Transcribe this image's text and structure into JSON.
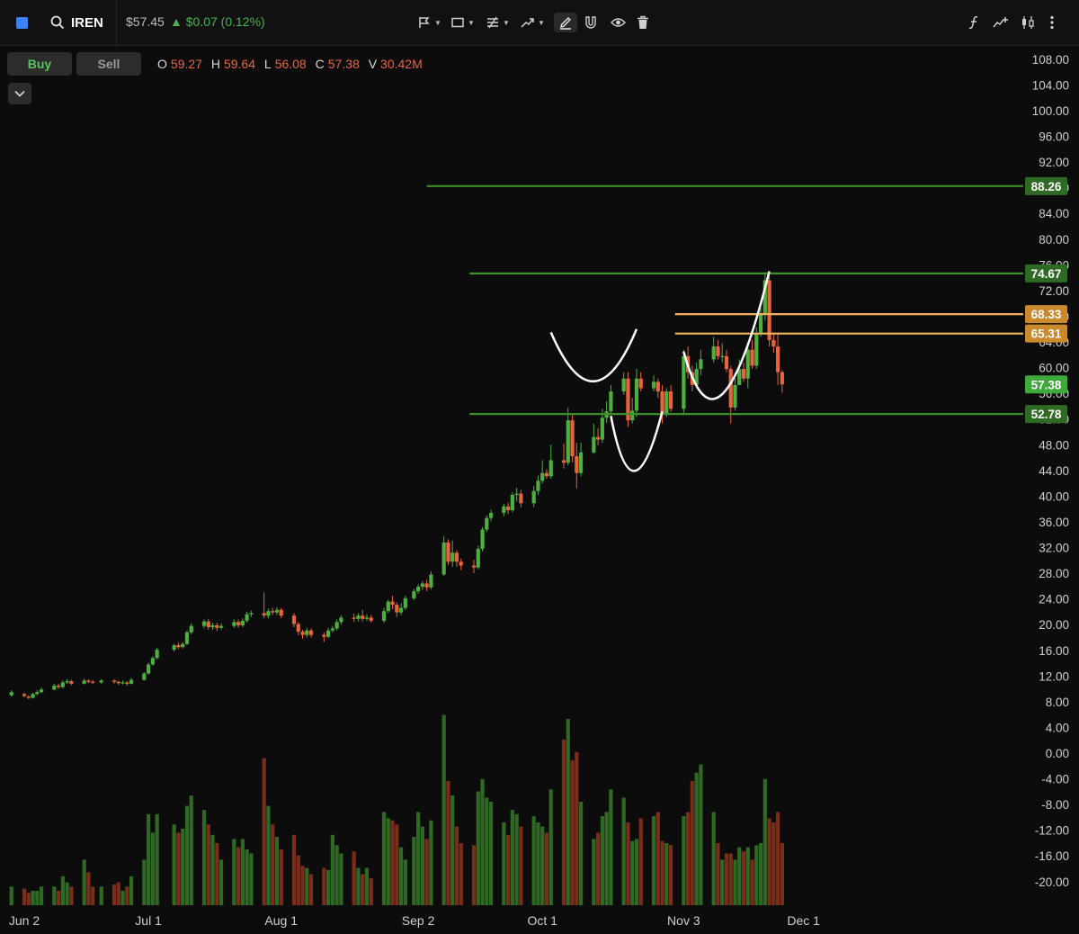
{
  "header": {
    "ticker": "IREN",
    "price": "$57.45",
    "change": "▲ $0.07 (0.12%)",
    "icons": [
      "app-square-icon",
      "search-icon",
      "flag-icon",
      "rectangle-icon",
      "fib-icon",
      "trend-icon",
      "pencil-icon",
      "magnet-icon",
      "eye-icon",
      "trash-icon",
      "function-icon",
      "indicator-icon",
      "candle-type-icon",
      "more-icon"
    ]
  },
  "toolbar": {
    "buy_label": "Buy",
    "sell_label": "Sell"
  },
  "ohlcv": {
    "o_label": "O",
    "o": "59.27",
    "h_label": "H",
    "h": "59.64",
    "l_label": "L",
    "l": "56.08",
    "c_label": "C",
    "c": "57.38",
    "v_label": "V",
    "v": "30.42M"
  },
  "colors": {
    "up": "#4caf3e",
    "down": "#e8643c",
    "level_green": "#3d8f2a",
    "level_orange": "#f2b25c",
    "background": "#0c0c0c",
    "accent": "#3b82f6"
  },
  "chart_data": {
    "type": "candlestick",
    "y_ticks": [
      "108.00",
      "104.00",
      "100.00",
      "96.00",
      "92.00",
      "88.00",
      "84.00",
      "80.00",
      "76.00",
      "72.00",
      "68.00",
      "64.00",
      "60.00",
      "56.00",
      "52.00",
      "48.00",
      "44.00",
      "40.00",
      "36.00",
      "32.00",
      "28.00",
      "24.00",
      "20.00",
      "16.00",
      "12.00",
      "8.00",
      "4.00",
      "0.00",
      "-4.00",
      "-8.00",
      "-12.00",
      "-16.00",
      "-20.00"
    ],
    "y_tick_values": [
      108,
      104,
      100,
      96,
      92,
      88,
      84,
      80,
      76,
      72,
      68,
      64,
      60,
      56,
      52,
      48,
      44,
      40,
      36,
      32,
      28,
      24,
      20,
      16,
      12,
      8,
      4,
      0,
      -4,
      -8,
      -12,
      -16,
      -20
    ],
    "ylim": [
      -22,
      110
    ],
    "x_ticks": [
      "Jun 2",
      "Jul 1",
      "Aug 1",
      "Sep 2",
      "Oct 1",
      "Nov 3",
      "Dec 1"
    ],
    "x_tick_dates": [
      "2025-06-02",
      "2025-07-01",
      "2025-08-01",
      "2025-09-02",
      "2025-10-01",
      "2025-11-03",
      "2025-12-01"
    ],
    "levels": [
      {
        "value": 88.26,
        "label": "88.26",
        "color": "green",
        "start": "2025-09-04"
      },
      {
        "value": 74.67,
        "label": "74.67",
        "color": "green",
        "start": "2025-09-14"
      },
      {
        "value": 68.33,
        "label": "68.33",
        "color": "orange",
        "start": "2025-11-01"
      },
      {
        "value": 65.31,
        "label": "65.31",
        "color": "orange",
        "start": "2025-11-01"
      },
      {
        "value": 57.38,
        "label": "57.38",
        "color": "last",
        "start": null
      },
      {
        "value": 52.78,
        "label": "52.78",
        "color": "green",
        "start": "2025-09-14"
      }
    ],
    "curves": [
      {
        "from": [
          "2025-10-03",
          65.5
        ],
        "control": [
          "2025-10-13",
          50
        ],
        "to": [
          "2025-10-23",
          66
        ]
      },
      {
        "from": [
          "2025-10-17",
          52.5
        ],
        "control": [
          "2025-10-22",
          35
        ],
        "to": [
          "2025-10-29",
          53.2
        ]
      },
      {
        "from": [
          "2025-11-03",
          62.5
        ],
        "control": [
          "2025-11-11",
          43
        ],
        "to": [
          "2025-11-23",
          75
        ]
      }
    ],
    "candles": [
      [
        "2025-05-30",
        9.0,
        9.5,
        9.8,
        8.8,
        9
      ],
      [
        "2025-06-02",
        9.2,
        8.9,
        9.4,
        8.7,
        8
      ],
      [
        "2025-06-03",
        8.8,
        8.6,
        9.0,
        8.4,
        6
      ],
      [
        "2025-06-04",
        8.6,
        9.2,
        9.4,
        8.5,
        7
      ],
      [
        "2025-06-05",
        9.2,
        9.5,
        9.8,
        9.0,
        7
      ],
      [
        "2025-06-06",
        9.5,
        9.9,
        10.2,
        9.3,
        9
      ],
      [
        "2025-06-09",
        9.9,
        10.5,
        10.8,
        9.8,
        9
      ],
      [
        "2025-06-10",
        10.5,
        10.3,
        10.8,
        10.0,
        7
      ],
      [
        "2025-06-11",
        10.3,
        11.0,
        11.3,
        10.1,
        14
      ],
      [
        "2025-06-12",
        11.0,
        11.2,
        11.5,
        10.8,
        11
      ],
      [
        "2025-06-13",
        11.2,
        10.8,
        11.4,
        10.6,
        9
      ],
      [
        "2025-06-16",
        10.8,
        11.3,
        11.6,
        10.7,
        22
      ],
      [
        "2025-06-17",
        11.3,
        11.1,
        11.5,
        10.9,
        16
      ],
      [
        "2025-06-18",
        11.1,
        11.0,
        11.4,
        10.8,
        9
      ],
      [
        "2025-06-20",
        11.0,
        11.3,
        11.5,
        10.8,
        9
      ],
      [
        "2025-06-23",
        11.3,
        11.1,
        11.5,
        10.8,
        10
      ],
      [
        "2025-06-24",
        11.1,
        10.9,
        11.3,
        10.6,
        11
      ],
      [
        "2025-06-25",
        10.9,
        11.0,
        11.3,
        10.7,
        7
      ],
      [
        "2025-06-26",
        11.0,
        10.8,
        11.2,
        10.5,
        9
      ],
      [
        "2025-06-27",
        10.8,
        11.4,
        11.7,
        10.7,
        14
      ],
      [
        "2025-06-30",
        11.4,
        12.4,
        12.6,
        11.3,
        22
      ],
      [
        "2025-07-01",
        12.4,
        13.8,
        14.1,
        12.2,
        44
      ],
      [
        "2025-07-02",
        13.8,
        14.8,
        15.1,
        13.6,
        35
      ],
      [
        "2025-07-03",
        14.8,
        16.1,
        16.4,
        14.6,
        44
      ],
      [
        "2025-07-07",
        16.1,
        16.8,
        17.0,
        15.8,
        39
      ],
      [
        "2025-07-08",
        16.8,
        16.5,
        17.2,
        16.2,
        35
      ],
      [
        "2025-07-09",
        16.5,
        17.0,
        17.3,
        16.3,
        37
      ],
      [
        "2025-07-10",
        17.0,
        18.8,
        19.1,
        16.8,
        48
      ],
      [
        "2025-07-11",
        18.8,
        19.8,
        20.2,
        18.5,
        53
      ],
      [
        "2025-07-14",
        19.8,
        20.5,
        20.8,
        19.4,
        46
      ],
      [
        "2025-07-15",
        20.5,
        19.6,
        20.9,
        19.2,
        39
      ],
      [
        "2025-07-16",
        19.6,
        19.9,
        20.3,
        19.2,
        34
      ],
      [
        "2025-07-17",
        19.9,
        19.5,
        20.3,
        19.0,
        30
      ],
      [
        "2025-07-18",
        19.5,
        19.8,
        20.2,
        19.2,
        22
      ],
      [
        "2025-07-21",
        19.8,
        20.4,
        20.8,
        19.5,
        32
      ],
      [
        "2025-07-22",
        20.4,
        19.9,
        20.8,
        19.5,
        28
      ],
      [
        "2025-07-23",
        19.9,
        20.6,
        21.0,
        19.6,
        32
      ],
      [
        "2025-07-24",
        20.6,
        21.6,
        22.0,
        20.3,
        27
      ],
      [
        "2025-07-25",
        21.6,
        21.8,
        22.2,
        21.2,
        25
      ],
      [
        "2025-07-28",
        21.8,
        21.4,
        25.0,
        21.0,
        71
      ],
      [
        "2025-07-29",
        21.4,
        22.1,
        22.5,
        21.0,
        48
      ],
      [
        "2025-07-30",
        22.1,
        21.9,
        22.6,
        21.5,
        39
      ],
      [
        "2025-07-31",
        21.9,
        22.3,
        22.7,
        21.5,
        33
      ],
      [
        "2025-08-01",
        22.3,
        21.4,
        22.6,
        21.0,
        27
      ],
      [
        "2025-08-04",
        21.4,
        20.1,
        21.8,
        19.6,
        34
      ],
      [
        "2025-08-05",
        20.1,
        18.9,
        20.4,
        18.3,
        24
      ],
      [
        "2025-08-06",
        18.9,
        18.4,
        19.2,
        17.8,
        19
      ],
      [
        "2025-08-07",
        18.4,
        19.1,
        19.5,
        18.0,
        18
      ],
      [
        "2025-08-08",
        19.1,
        18.4,
        19.4,
        18.0,
        15
      ],
      [
        "2025-08-11",
        18.4,
        18.1,
        18.8,
        17.3,
        18
      ],
      [
        "2025-08-12",
        18.1,
        19.1,
        19.5,
        17.9,
        17
      ],
      [
        "2025-08-13",
        19.1,
        19.4,
        19.8,
        18.8,
        34
      ],
      [
        "2025-08-14",
        19.4,
        20.4,
        20.8,
        19.1,
        29
      ],
      [
        "2025-08-15",
        20.4,
        21.1,
        21.5,
        20.0,
        25
      ],
      [
        "2025-08-18",
        21.1,
        20.9,
        21.7,
        20.4,
        26
      ],
      [
        "2025-08-19",
        20.9,
        21.4,
        21.8,
        20.5,
        18
      ],
      [
        "2025-08-20",
        21.4,
        20.9,
        22.3,
        20.5,
        15
      ],
      [
        "2025-08-21",
        20.9,
        21.1,
        21.6,
        20.6,
        18
      ],
      [
        "2025-08-22",
        21.1,
        20.6,
        21.5,
        20.3,
        13
      ],
      [
        "2025-08-25",
        20.6,
        22.1,
        22.6,
        20.3,
        45
      ],
      [
        "2025-08-26",
        22.1,
        23.6,
        23.9,
        21.8,
        42
      ],
      [
        "2025-08-27",
        23.6,
        23.1,
        24.5,
        22.4,
        41
      ],
      [
        "2025-08-28",
        23.1,
        21.9,
        23.5,
        21.2,
        39
      ],
      [
        "2025-08-29",
        21.9,
        22.6,
        23.3,
        21.5,
        28
      ],
      [
        "2025-08-30",
        22.6,
        24.1,
        24.5,
        22.3,
        22
      ],
      [
        "2025-09-01",
        24.1,
        25.2,
        25.6,
        23.8,
        33
      ],
      [
        "2025-09-02",
        25.2,
        25.9,
        26.3,
        24.8,
        45
      ],
      [
        "2025-09-03",
        25.9,
        26.4,
        26.8,
        25.4,
        38
      ],
      [
        "2025-09-04",
        26.4,
        25.8,
        27.0,
        25.2,
        32
      ],
      [
        "2025-09-05",
        25.8,
        27.8,
        28.3,
        25.5,
        41
      ],
      [
        "2025-09-08",
        27.8,
        32.8,
        33.8,
        27.6,
        92
      ],
      [
        "2025-09-09",
        32.8,
        29.8,
        33.3,
        29.3,
        60
      ],
      [
        "2025-09-10",
        29.8,
        31.2,
        33.1,
        29.0,
        53
      ],
      [
        "2025-09-11",
        31.2,
        29.8,
        31.6,
        29.0,
        38
      ],
      [
        "2025-09-12",
        29.8,
        29.2,
        30.3,
        28.5,
        30
      ],
      [
        "2025-09-15",
        29.2,
        28.9,
        30.1,
        28.0,
        29
      ],
      [
        "2025-09-16",
        28.9,
        31.8,
        32.3,
        28.6,
        55
      ],
      [
        "2025-09-17",
        31.8,
        34.8,
        35.2,
        31.4,
        61
      ],
      [
        "2025-09-18",
        34.8,
        36.6,
        37.0,
        34.4,
        52
      ],
      [
        "2025-09-19",
        36.6,
        37.4,
        37.9,
        36.1,
        50
      ],
      [
        "2025-09-22",
        37.4,
        38.4,
        38.8,
        36.9,
        40
      ],
      [
        "2025-09-23",
        38.4,
        37.8,
        39.0,
        37.2,
        34
      ],
      [
        "2025-09-24",
        37.8,
        40.2,
        40.6,
        37.5,
        46
      ],
      [
        "2025-09-25",
        40.2,
        40.4,
        41.3,
        39.2,
        44
      ],
      [
        "2025-09-26",
        40.4,
        38.9,
        41.0,
        38.3,
        38
      ],
      [
        "2025-09-29",
        38.9,
        40.8,
        41.6,
        38.3,
        43
      ],
      [
        "2025-09-30",
        40.8,
        42.4,
        43.2,
        40.2,
        40
      ],
      [
        "2025-10-01",
        42.4,
        43.6,
        45.6,
        42.0,
        38
      ],
      [
        "2025-10-02",
        43.6,
        43.1,
        44.2,
        42.7,
        35
      ],
      [
        "2025-10-03",
        43.1,
        45.6,
        48.0,
        42.7,
        56
      ],
      [
        "2025-10-06",
        45.6,
        45.2,
        48.2,
        44.3,
        80
      ],
      [
        "2025-10-07",
        45.2,
        51.8,
        53.8,
        44.8,
        90
      ],
      [
        "2025-10-08",
        51.8,
        46.2,
        52.6,
        45.3,
        70
      ],
      [
        "2025-10-09",
        46.2,
        43.6,
        48.3,
        41.2,
        74
      ],
      [
        "2025-10-10",
        43.6,
        46.8,
        48.3,
        43.1,
        50
      ],
      [
        "2025-10-13",
        46.8,
        49.2,
        51.3,
        46.6,
        32
      ],
      [
        "2025-10-14",
        49.2,
        48.8,
        50.6,
        47.9,
        35
      ],
      [
        "2025-10-15",
        48.8,
        52.2,
        53.6,
        48.3,
        43
      ],
      [
        "2025-10-16",
        52.2,
        53.2,
        54.8,
        51.4,
        45
      ],
      [
        "2025-10-17",
        53.2,
        56.3,
        57.3,
        52.8,
        56
      ],
      [
        "2025-10-20",
        56.3,
        58.3,
        59.3,
        55.8,
        52
      ],
      [
        "2025-10-21",
        58.3,
        51.8,
        59.3,
        50.8,
        40
      ],
      [
        "2025-10-22",
        51.8,
        53.3,
        55.3,
        51.3,
        31
      ],
      [
        "2025-10-23",
        53.3,
        58.3,
        59.8,
        52.3,
        32
      ],
      [
        "2025-10-24",
        58.3,
        56.8,
        59.3,
        56.3,
        42
      ],
      [
        "2025-10-27",
        56.8,
        57.8,
        58.8,
        56.3,
        43
      ],
      [
        "2025-10-28",
        57.8,
        56.3,
        58.3,
        55.3,
        45
      ],
      [
        "2025-10-29",
        56.3,
        52.8,
        57.3,
        51.3,
        31
      ],
      [
        "2025-10-30",
        52.8,
        56.3,
        56.8,
        52.3,
        30
      ],
      [
        "2025-10-31",
        56.3,
        53.6,
        57.3,
        53.1,
        29
      ],
      [
        "2025-11-03",
        53.6,
        61.8,
        62.8,
        52.8,
        43
      ],
      [
        "2025-11-04",
        61.8,
        59.3,
        63.3,
        58.3,
        45
      ],
      [
        "2025-11-05",
        59.3,
        57.3,
        60.3,
        56.3,
        60
      ],
      [
        "2025-11-06",
        57.3,
        59.8,
        60.8,
        56.8,
        64
      ],
      [
        "2025-11-07",
        59.8,
        61.3,
        62.8,
        58.8,
        68
      ],
      [
        "2025-11-10",
        61.3,
        63.3,
        64.8,
        60.8,
        45
      ],
      [
        "2025-11-11",
        63.3,
        61.8,
        64.3,
        61.3,
        30
      ],
      [
        "2025-11-12",
        61.8,
        61.8,
        63.8,
        60.8,
        22
      ],
      [
        "2025-11-13",
        61.8,
        59.8,
        62.8,
        59.3,
        25
      ],
      [
        "2025-11-14",
        59.8,
        53.8,
        60.3,
        51.3,
        25
      ],
      [
        "2025-11-15",
        53.8,
        57.3,
        58.3,
        53.3,
        22
      ],
      [
        "2025-11-16",
        57.3,
        59.8,
        61.3,
        57.3,
        28
      ],
      [
        "2025-11-17",
        59.8,
        58.3,
        60.8,
        57.8,
        26
      ],
      [
        "2025-11-18",
        58.3,
        62.8,
        63.8,
        56.8,
        28
      ],
      [
        "2025-11-19",
        62.8,
        60.3,
        64.3,
        59.8,
        22
      ],
      [
        "2025-11-20",
        60.3,
        65.3,
        66.3,
        59.8,
        29
      ],
      [
        "2025-11-21",
        65.3,
        68.3,
        69.3,
        64.8,
        30
      ],
      [
        "2025-11-22",
        68.3,
        73.6,
        74.7,
        67.3,
        61
      ],
      [
        "2025-11-23",
        73.6,
        64.3,
        74.7,
        63.3,
        42
      ],
      [
        "2025-11-24",
        64.3,
        63.3,
        65.3,
        62.3,
        40
      ],
      [
        "2025-11-25",
        63.3,
        59.3,
        65.3,
        57.3,
        45
      ],
      [
        "2025-11-26",
        59.3,
        57.4,
        59.6,
        56.1,
        30
      ]
    ]
  }
}
